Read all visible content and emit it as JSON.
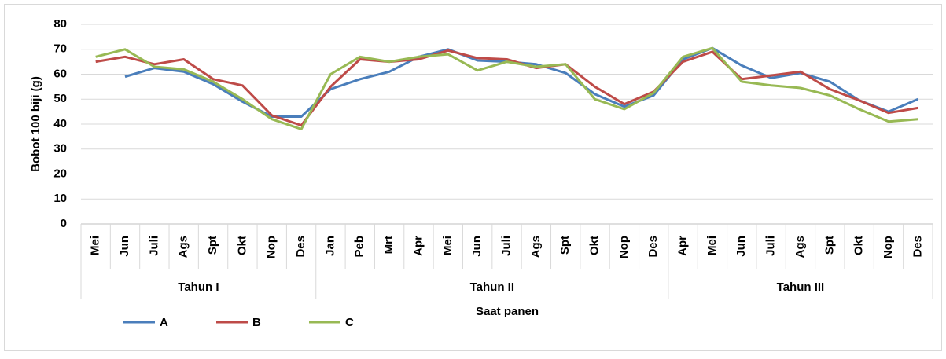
{
  "chart_data": {
    "type": "line",
    "y_label": "Bobot 100 biji (g)",
    "x_label": "Saat panen",
    "groups": [
      {
        "label": "Tahun I",
        "categories": [
          "Mei",
          "Jun",
          "Juli",
          "Ags",
          "Spt",
          "Okt",
          "Nop",
          "Des"
        ]
      },
      {
        "label": "Tahun II",
        "categories": [
          "Jan",
          "Peb",
          "Mrt",
          "Apr",
          "Mei",
          "Jun",
          "Juli",
          "Ags",
          "Spt",
          "Okt",
          "Nop",
          "Des"
        ]
      },
      {
        "label": "Tahun III",
        "categories": [
          "Apr",
          "Mei",
          "Jun",
          "Juli",
          "Ags",
          "Spt",
          "Okt",
          "Nop",
          "Des"
        ]
      }
    ],
    "series": [
      {
        "name": "A",
        "color": "#4a7ebb",
        "values": [
          null,
          59,
          62.5,
          61,
          56,
          49,
          43,
          43,
          54,
          58,
          61,
          67,
          70,
          65.5,
          65,
          64,
          60.5,
          52,
          47,
          51.5,
          66,
          70.5,
          63.5,
          58.5,
          60.5,
          57,
          49.5,
          45,
          50
        ]
      },
      {
        "name": "B",
        "color": "#be4b48",
        "values": [
          65,
          67,
          64,
          66,
          58,
          55.5,
          43.5,
          39.5,
          55,
          66,
          65,
          66,
          69.5,
          66.5,
          66,
          62.5,
          64,
          55,
          48,
          53,
          65,
          69,
          58,
          59.5,
          61,
          54,
          49.5,
          44.5,
          46.5
        ]
      },
      {
        "name": "C",
        "color": "#98b954",
        "values": [
          67,
          70,
          63,
          62,
          57,
          50,
          42,
          38,
          60,
          67,
          65,
          67,
          68,
          61.5,
          65,
          63,
          64,
          50,
          46,
          52.5,
          67,
          70.5,
          57,
          55.5,
          54.5,
          51.5,
          46,
          41,
          42
        ]
      }
    ],
    "ylim": [
      0,
      80
    ],
    "yticks": [
      0,
      10,
      20,
      30,
      40,
      50,
      60,
      70,
      80
    ],
    "grid": true
  }
}
